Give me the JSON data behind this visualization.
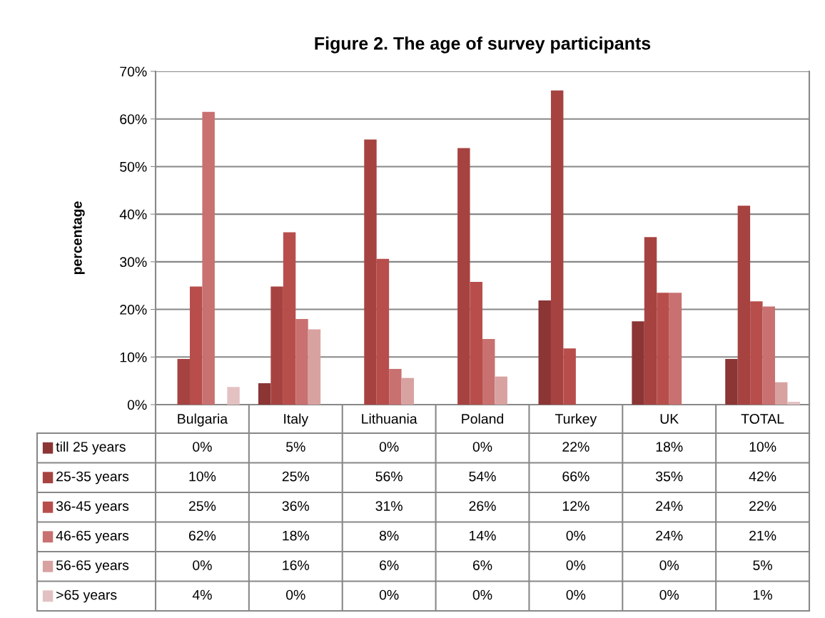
{
  "chart_data": {
    "type": "bar",
    "title": "Figure 2. The age of survey participants",
    "ylabel": "percentage",
    "categories": [
      "Bulgaria",
      "Italy",
      "Lithuania",
      "Poland",
      "Turkey",
      "UK",
      "TOTAL"
    ],
    "series": [
      {
        "name": "till 25 years",
        "color": "#8b3535",
        "values": [
          0,
          4.5,
          0,
          0,
          21.9,
          17.5,
          9.6
        ],
        "value_labels": [
          "0%",
          "5%",
          "0%",
          "0%",
          "22%",
          "18%",
          "10%"
        ]
      },
      {
        "name": "25-35 years",
        "color": "#a64341",
        "values": [
          9.6,
          24.8,
          55.7,
          53.9,
          66.0,
          35.2,
          41.8
        ],
        "value_labels": [
          "10%",
          "25%",
          "56%",
          "54%",
          "66%",
          "35%",
          "42%"
        ]
      },
      {
        "name": "36-45 years",
        "color": "#b84e4b",
        "values": [
          24.8,
          36.2,
          30.6,
          25.8,
          11.8,
          23.5,
          21.7
        ],
        "value_labels": [
          "25%",
          "36%",
          "31%",
          "26%",
          "12%",
          "24%",
          "22%"
        ]
      },
      {
        "name": "46-65 years",
        "color": "#c87170",
        "values": [
          61.5,
          18.0,
          7.5,
          13.8,
          0,
          23.5,
          20.6
        ],
        "value_labels": [
          "62%",
          "18%",
          "8%",
          "14%",
          "0%",
          "24%",
          "21%"
        ]
      },
      {
        "name": "56-65 years",
        "color": "#d8a2a1",
        "values": [
          0,
          15.8,
          5.6,
          5.9,
          0,
          0,
          4.7
        ],
        "value_labels": [
          "0%",
          "16%",
          "6%",
          "6%",
          "0%",
          "0%",
          "5%"
        ]
      },
      {
        "name": ">65 years",
        "color": "#e3c1c2",
        "values": [
          3.7,
          0,
          0,
          0,
          0,
          0,
          0.6
        ],
        "value_labels": [
          "4%",
          "0%",
          "0%",
          "0%",
          "0%",
          "0%",
          "1%"
        ]
      }
    ],
    "ylim": [
      0,
      70
    ],
    "yticks": [
      {
        "value": 0,
        "label": "0%"
      },
      {
        "value": 10,
        "label": "10%"
      },
      {
        "value": 20,
        "label": "20%"
      },
      {
        "value": 30,
        "label": "30%"
      },
      {
        "value": 40,
        "label": "40%"
      },
      {
        "value": 50,
        "label": "50%"
      },
      {
        "value": 60,
        "label": "60%"
      },
      {
        "value": 70,
        "label": "70%"
      }
    ],
    "grid": "y",
    "legend": "bottom left"
  }
}
